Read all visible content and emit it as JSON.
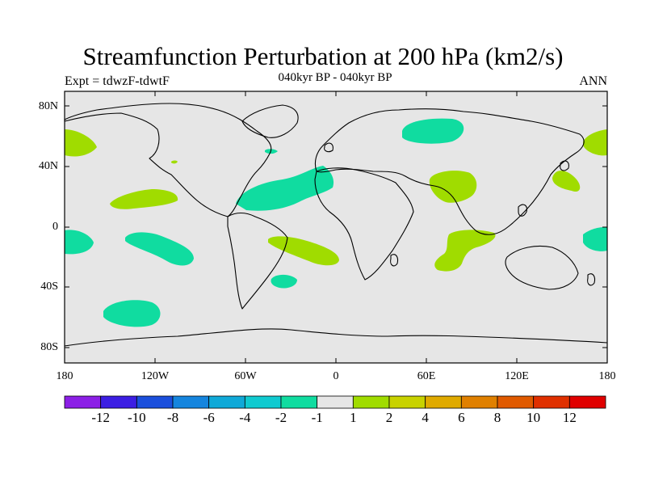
{
  "title": "Streamfunction Perturbation at 200 hPa (km2/s)",
  "left_label": "Expt = tdwzF-tdwtF",
  "center_label": "040kyr BP - 040kyr BP",
  "right_label": "ANN",
  "lat_ticks": [
    "80N",
    "40N",
    "0",
    "40S",
    "80S"
  ],
  "lon_ticks": [
    "180",
    "120W",
    "60W",
    "0",
    "60E",
    "120E",
    "180"
  ],
  "colorbar": {
    "labels": [
      "-12",
      "-10",
      "-8",
      "-6",
      "-4",
      "-2",
      "-1",
      "1",
      "2",
      "4",
      "6",
      "8",
      "10",
      "12"
    ],
    "colors": [
      "#8c1fe6",
      "#3c1ee3",
      "#1b4fdc",
      "#1585de",
      "#10a9d8",
      "#10cad0",
      "#10dca0",
      "#e6e6e6",
      "#a0dc00",
      "#c8d200",
      "#e0aa00",
      "#e08000",
      "#e05a00",
      "#e03000",
      "#e00000"
    ]
  },
  "colors": {
    "ocean": "#e6e6e6",
    "negative_anomaly": "#10dca0",
    "positive_anomaly": "#a0dc00",
    "coast": "#000000"
  }
}
